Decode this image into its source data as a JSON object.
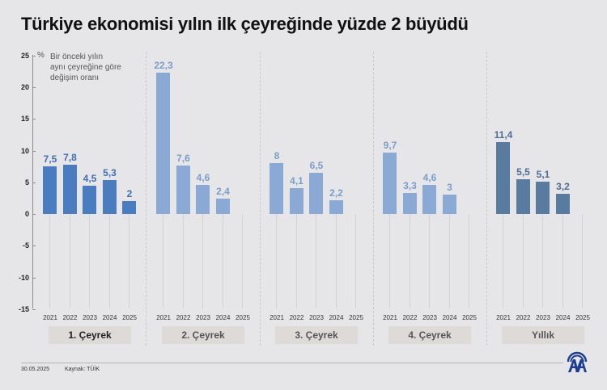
{
  "title": "Türkiye ekonomisi yılın ilk çeyreğinde yüzde 2 büyüdü",
  "legend": {
    "unit": "%",
    "line1": "Bir önceki yılın",
    "line2": "aynı çeyreğine göre",
    "line3": "değişim oranı"
  },
  "footer": {
    "date": "30.05.2025",
    "source": "Kaynak: TÜİK",
    "logo": "aa-logo-icon"
  },
  "colors": {
    "q1": "#4a7cc0",
    "q2_q4": "#8aa9d4",
    "annual": "#5a7ba0",
    "q1_label": "#3f6fb5",
    "q2_q4_label": "#7b9dcc",
    "annual_label": "#4d6d94"
  },
  "chart_data": {
    "type": "bar",
    "title": "Türkiye ekonomisi yılın ilk çeyreğinde yüzde 2 büyüdü",
    "xlabel": "",
    "ylabel": "%",
    "ylim": [
      -15,
      25
    ],
    "yticks": [
      25,
      20,
      15,
      10,
      5,
      0,
      -5,
      -10,
      -15
    ],
    "grid": false,
    "categories": [
      "2021",
      "2022",
      "2023",
      "2024",
      "2025"
    ],
    "series": [
      {
        "name": "1. Çeyrek",
        "values": [
          7.5,
          7.8,
          4.5,
          5.3,
          2
        ],
        "labels": [
          "7,5",
          "7,8",
          "4,5",
          "5,3",
          "2"
        ]
      },
      {
        "name": "2. Çeyrek",
        "values": [
          22.3,
          7.6,
          4.6,
          2.4,
          null
        ],
        "labels": [
          "22,3",
          "7,6",
          "4,6",
          "2,4",
          ""
        ]
      },
      {
        "name": "3. Çeyrek",
        "values": [
          8,
          4.1,
          6.5,
          2.2,
          null
        ],
        "labels": [
          "8",
          "4,1",
          "6,5",
          "2,2",
          ""
        ]
      },
      {
        "name": "4. Çeyrek",
        "values": [
          9.7,
          3.3,
          4.6,
          3,
          null
        ],
        "labels": [
          "9,7",
          "3,3",
          "4,6",
          "3",
          ""
        ]
      },
      {
        "name": "Yıllık",
        "values": [
          11.4,
          5.5,
          5.1,
          3.2,
          null
        ],
        "labels": [
          "11,4",
          "5,5",
          "5,1",
          "3,2",
          ""
        ]
      }
    ],
    "annotation": "% Bir önceki yılın aynı çeyreğine göre değişim oranı"
  }
}
